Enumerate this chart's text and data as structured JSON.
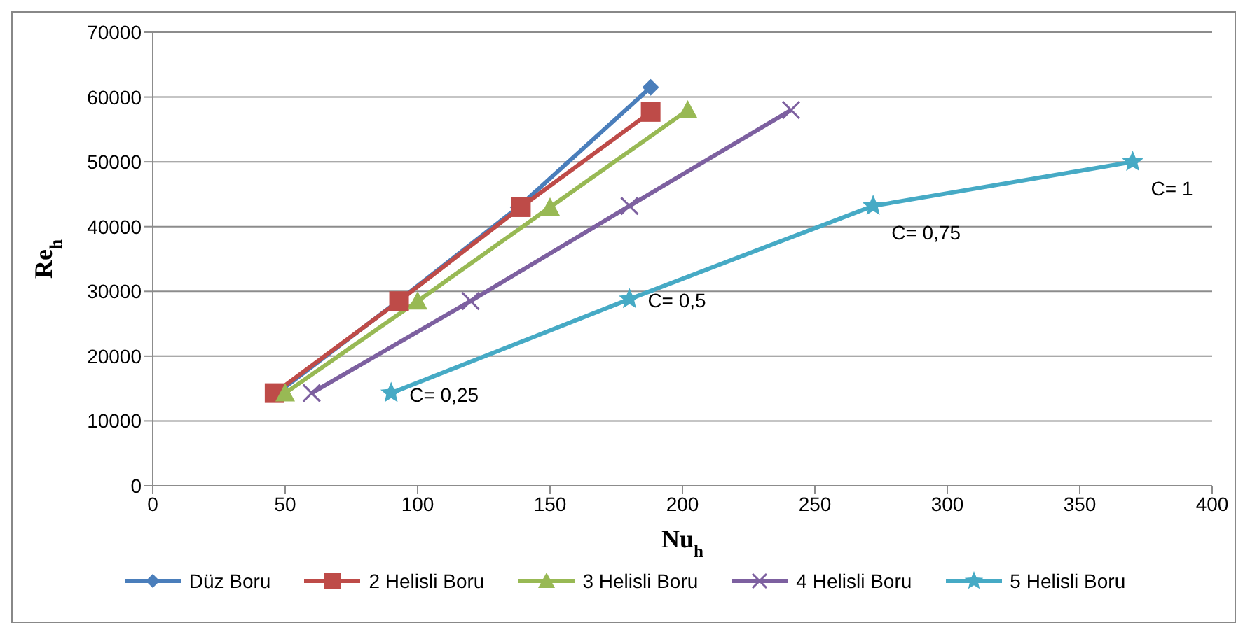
{
  "chart_data": {
    "type": "line",
    "xlabel": "Nu$_{h}$",
    "ylabel": "Re$_{h}$",
    "xlim": [
      0,
      400
    ],
    "xticks": [
      0,
      50,
      100,
      150,
      200,
      250,
      300,
      350,
      400
    ],
    "ylim": [
      0,
      70000
    ],
    "yticks": [
      0,
      10000,
      20000,
      30000,
      40000,
      50000,
      60000,
      70000
    ],
    "grid": "y",
    "legend": "bottom",
    "series": [
      {
        "name": "Düz Boru",
        "color": "#4a7ebb",
        "marker": "diamond",
        "x": [
          47,
          93,
          138,
          188
        ],
        "values": [
          14300,
          28600,
          43000,
          61500
        ]
      },
      {
        "name": "2 Helisli Boru",
        "color": "#be4b48",
        "marker": "square",
        "x": [
          46,
          93,
          139,
          188
        ],
        "values": [
          14300,
          28500,
          43000,
          57700
        ]
      },
      {
        "name": "3 Helisli Boru",
        "color": "#98b954",
        "marker": "triangle",
        "x": [
          50,
          100,
          150,
          202
        ],
        "values": [
          14300,
          28500,
          43000,
          58000
        ]
      },
      {
        "name": "4 Helisli Boru",
        "color": "#7d60a0",
        "marker": "cross",
        "x": [
          60,
          120,
          180,
          241
        ],
        "values": [
          14300,
          28500,
          43200,
          58000
        ]
      },
      {
        "name": "5 Helisli Boru",
        "color": "#46aac5",
        "marker": "star",
        "x": [
          90,
          180,
          272,
          370
        ],
        "values": [
          14300,
          28800,
          43200,
          50000
        ]
      }
    ],
    "annotations": [
      {
        "text": "C= 0,25",
        "x": 90,
        "y": 14300
      },
      {
        "text": "C= 0,5",
        "x": 180,
        "y": 28800
      },
      {
        "text": "C= 0,75",
        "x": 272,
        "y": 43200
      },
      {
        "text": "C= 1",
        "x": 370,
        "y": 50000
      }
    ]
  }
}
